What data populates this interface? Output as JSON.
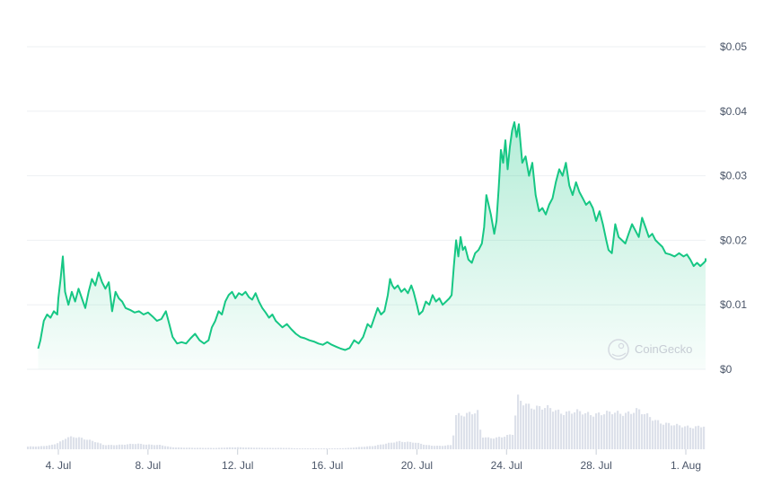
{
  "chart_data": {
    "type": "area",
    "title": "",
    "xlabel": "",
    "ylabel": "",
    "y_tick_labels": [
      "$0",
      "$0.01",
      "$0.02",
      "$0.03",
      "$0.04",
      "$0.05"
    ],
    "y_tick_values": [
      0,
      0.01,
      0.02,
      0.03,
      0.04,
      0.05
    ],
    "ylim": [
      0,
      0.05
    ],
    "x_tick_labels": [
      "4. Jul",
      "8. Jul",
      "12. Jul",
      "16. Jul",
      "20. Jul",
      "24. Jul",
      "28. Jul",
      "1. Aug"
    ],
    "x_tick_days": [
      4,
      8,
      12,
      16,
      20,
      24,
      28,
      32
    ],
    "xlim_days": [
      3.1,
      32.3
    ],
    "x_unit": "day of July",
    "grid": true,
    "line_color": "#16c784",
    "fill_color": "#16c784",
    "volume_color": "#dde1ea",
    "watermark": "CoinGecko",
    "series": [
      {
        "values": [
          [
            3.1,
            0.0032
          ],
          [
            3.2,
            0.0045
          ],
          [
            3.35,
            0.0075
          ],
          [
            3.5,
            0.0085
          ],
          [
            3.65,
            0.008
          ],
          [
            3.8,
            0.009
          ],
          [
            3.95,
            0.0085
          ],
          [
            4.0,
            0.011
          ],
          [
            4.1,
            0.014
          ],
          [
            4.2,
            0.0175
          ],
          [
            4.3,
            0.012
          ],
          [
            4.45,
            0.01
          ],
          [
            4.6,
            0.012
          ],
          [
            4.75,
            0.0105
          ],
          [
            4.9,
            0.0125
          ],
          [
            5.05,
            0.011
          ],
          [
            5.2,
            0.0095
          ],
          [
            5.35,
            0.012
          ],
          [
            5.5,
            0.014
          ],
          [
            5.65,
            0.013
          ],
          [
            5.8,
            0.015
          ],
          [
            5.95,
            0.0135
          ],
          [
            6.1,
            0.0125
          ],
          [
            6.25,
            0.0135
          ],
          [
            6.4,
            0.009
          ],
          [
            6.55,
            0.012
          ],
          [
            6.7,
            0.011
          ],
          [
            6.85,
            0.0105
          ],
          [
            7.0,
            0.0095
          ],
          [
            7.2,
            0.0092
          ],
          [
            7.4,
            0.0088
          ],
          [
            7.6,
            0.009
          ],
          [
            7.8,
            0.0085
          ],
          [
            8.0,
            0.0088
          ],
          [
            8.2,
            0.0082
          ],
          [
            8.4,
            0.0075
          ],
          [
            8.6,
            0.0078
          ],
          [
            8.8,
            0.009
          ],
          [
            8.95,
            0.007
          ],
          [
            9.1,
            0.005
          ],
          [
            9.3,
            0.004
          ],
          [
            9.5,
            0.0042
          ],
          [
            9.7,
            0.004
          ],
          [
            9.9,
            0.0048
          ],
          [
            10.1,
            0.0055
          ],
          [
            10.3,
            0.0045
          ],
          [
            10.5,
            0.004
          ],
          [
            10.7,
            0.0045
          ],
          [
            10.85,
            0.0065
          ],
          [
            11.0,
            0.0075
          ],
          [
            11.15,
            0.009
          ],
          [
            11.3,
            0.0085
          ],
          [
            11.45,
            0.0105
          ],
          [
            11.6,
            0.0115
          ],
          [
            11.75,
            0.012
          ],
          [
            11.9,
            0.011
          ],
          [
            12.05,
            0.0118
          ],
          [
            12.2,
            0.0115
          ],
          [
            12.35,
            0.012
          ],
          [
            12.5,
            0.0112
          ],
          [
            12.65,
            0.0108
          ],
          [
            12.8,
            0.0118
          ],
          [
            12.95,
            0.0105
          ],
          [
            13.1,
            0.0095
          ],
          [
            13.25,
            0.0088
          ],
          [
            13.4,
            0.008
          ],
          [
            13.55,
            0.0085
          ],
          [
            13.7,
            0.0075
          ],
          [
            13.85,
            0.007
          ],
          [
            14.0,
            0.0065
          ],
          [
            14.2,
            0.007
          ],
          [
            14.4,
            0.0062
          ],
          [
            14.6,
            0.0055
          ],
          [
            14.8,
            0.005
          ],
          [
            15.0,
            0.0048
          ],
          [
            15.2,
            0.0045
          ],
          [
            15.4,
            0.0043
          ],
          [
            15.6,
            0.004
          ],
          [
            15.8,
            0.0038
          ],
          [
            16.0,
            0.0042
          ],
          [
            16.2,
            0.0038
          ],
          [
            16.4,
            0.0035
          ],
          [
            16.6,
            0.0032
          ],
          [
            16.8,
            0.003
          ],
          [
            17.0,
            0.0033
          ],
          [
            17.2,
            0.0045
          ],
          [
            17.4,
            0.004
          ],
          [
            17.6,
            0.005
          ],
          [
            17.8,
            0.007
          ],
          [
            17.95,
            0.0065
          ],
          [
            18.1,
            0.008
          ],
          [
            18.25,
            0.0095
          ],
          [
            18.4,
            0.0085
          ],
          [
            18.55,
            0.009
          ],
          [
            18.7,
            0.0115
          ],
          [
            18.8,
            0.014
          ],
          [
            18.9,
            0.013
          ],
          [
            19.0,
            0.0125
          ],
          [
            19.15,
            0.013
          ],
          [
            19.3,
            0.012
          ],
          [
            19.45,
            0.0125
          ],
          [
            19.6,
            0.0118
          ],
          [
            19.75,
            0.013
          ],
          [
            19.85,
            0.012
          ],
          [
            20.0,
            0.01
          ],
          [
            20.1,
            0.0085
          ],
          [
            20.25,
            0.009
          ],
          [
            20.4,
            0.0105
          ],
          [
            20.55,
            0.01
          ],
          [
            20.7,
            0.0115
          ],
          [
            20.85,
            0.0105
          ],
          [
            21.0,
            0.011
          ],
          [
            21.15,
            0.01
          ],
          [
            21.3,
            0.0105
          ],
          [
            21.45,
            0.011
          ],
          [
            21.55,
            0.0115
          ],
          [
            21.65,
            0.016
          ],
          [
            21.75,
            0.02
          ],
          [
            21.85,
            0.0175
          ],
          [
            21.95,
            0.0205
          ],
          [
            22.05,
            0.0185
          ],
          [
            22.15,
            0.019
          ],
          [
            22.3,
            0.017
          ],
          [
            22.45,
            0.0165
          ],
          [
            22.6,
            0.018
          ],
          [
            22.75,
            0.0185
          ],
          [
            22.9,
            0.0195
          ],
          [
            23.0,
            0.022
          ],
          [
            23.1,
            0.027
          ],
          [
            23.2,
            0.0255
          ],
          [
            23.3,
            0.024
          ],
          [
            23.45,
            0.021
          ],
          [
            23.55,
            0.023
          ],
          [
            23.65,
            0.028
          ],
          [
            23.75,
            0.034
          ],
          [
            23.85,
            0.032
          ],
          [
            23.95,
            0.0355
          ],
          [
            24.05,
            0.031
          ],
          [
            24.15,
            0.0345
          ],
          [
            24.25,
            0.037
          ],
          [
            24.35,
            0.0383
          ],
          [
            24.45,
            0.036
          ],
          [
            24.55,
            0.038
          ],
          [
            24.7,
            0.032
          ],
          [
            24.85,
            0.033
          ],
          [
            25.0,
            0.03
          ],
          [
            25.15,
            0.032
          ],
          [
            25.3,
            0.027
          ],
          [
            25.45,
            0.0245
          ],
          [
            25.6,
            0.025
          ],
          [
            25.75,
            0.024
          ],
          [
            25.9,
            0.0255
          ],
          [
            26.05,
            0.0265
          ],
          [
            26.2,
            0.029
          ],
          [
            26.35,
            0.031
          ],
          [
            26.5,
            0.03
          ],
          [
            26.65,
            0.032
          ],
          [
            26.8,
            0.0285
          ],
          [
            26.95,
            0.027
          ],
          [
            27.1,
            0.029
          ],
          [
            27.25,
            0.0275
          ],
          [
            27.4,
            0.0265
          ],
          [
            27.55,
            0.0255
          ],
          [
            27.7,
            0.026
          ],
          [
            27.85,
            0.025
          ],
          [
            28.0,
            0.023
          ],
          [
            28.15,
            0.0245
          ],
          [
            28.3,
            0.0225
          ],
          [
            28.45,
            0.02
          ],
          [
            28.55,
            0.0185
          ],
          [
            28.7,
            0.018
          ],
          [
            28.85,
            0.0225
          ],
          [
            29.0,
            0.0205
          ],
          [
            29.15,
            0.02
          ],
          [
            29.3,
            0.0195
          ],
          [
            29.45,
            0.021
          ],
          [
            29.6,
            0.0225
          ],
          [
            29.75,
            0.0215
          ],
          [
            29.9,
            0.0205
          ],
          [
            30.05,
            0.0235
          ],
          [
            30.2,
            0.022
          ],
          [
            30.35,
            0.0205
          ],
          [
            30.5,
            0.021
          ],
          [
            30.65,
            0.02
          ],
          [
            30.8,
            0.0195
          ],
          [
            30.95,
            0.019
          ],
          [
            31.1,
            0.018
          ],
          [
            31.3,
            0.0178
          ],
          [
            31.5,
            0.0175
          ],
          [
            31.7,
            0.018
          ],
          [
            31.9,
            0.0175
          ],
          [
            32.05,
            0.0178
          ],
          [
            32.2,
            0.017
          ],
          [
            32.35,
            0.016
          ],
          [
            32.5,
            0.0165
          ],
          [
            32.65,
            0.016
          ],
          [
            32.8,
            0.0165
          ],
          [
            33.0,
            0.0168
          ],
          [
            33.1,
            0.0172
          ]
        ]
      }
    ],
    "volume": [
      [
        3.1,
        0.04
      ],
      [
        3.6,
        0.06
      ],
      [
        4.0,
        0.1
      ],
      [
        4.3,
        0.16
      ],
      [
        4.6,
        0.18
      ],
      [
        5.0,
        0.17
      ],
      [
        5.5,
        0.12
      ],
      [
        6.0,
        0.06
      ],
      [
        7.0,
        0.07
      ],
      [
        7.5,
        0.08
      ],
      [
        8.5,
        0.06
      ],
      [
        9.0,
        0.03
      ],
      [
        10.0,
        0.02
      ],
      [
        11.0,
        0.02
      ],
      [
        12.0,
        0.03
      ],
      [
        13.0,
        0.02
      ],
      [
        14.0,
        0.02
      ],
      [
        15.0,
        0.01
      ],
      [
        16.0,
        0.01
      ],
      [
        17.0,
        0.02
      ],
      [
        18.0,
        0.05
      ],
      [
        18.6,
        0.08
      ],
      [
        19.2,
        0.12
      ],
      [
        19.8,
        0.1
      ],
      [
        20.4,
        0.06
      ],
      [
        21.0,
        0.05
      ],
      [
        21.55,
        0.06
      ],
      [
        21.65,
        0.48
      ],
      [
        22.0,
        0.52
      ],
      [
        22.4,
        0.55
      ],
      [
        22.75,
        0.53
      ],
      [
        22.8,
        0.18
      ],
      [
        23.2,
        0.16
      ],
      [
        23.6,
        0.18
      ],
      [
        24.0,
        0.2
      ],
      [
        24.3,
        0.22
      ],
      [
        24.4,
        0.75
      ],
      [
        24.6,
        0.7
      ],
      [
        25.0,
        0.65
      ],
      [
        25.5,
        0.6
      ],
      [
        26.0,
        0.58
      ],
      [
        26.5,
        0.55
      ],
      [
        27.0,
        0.54
      ],
      [
        27.5,
        0.52
      ],
      [
        28.0,
        0.53
      ],
      [
        28.5,
        0.52
      ],
      [
        29.0,
        0.53
      ],
      [
        29.5,
        0.55
      ],
      [
        29.8,
        0.57
      ],
      [
        30.0,
        0.52
      ],
      [
        30.5,
        0.45
      ],
      [
        31.0,
        0.38
      ],
      [
        31.5,
        0.34
      ],
      [
        32.0,
        0.34
      ],
      [
        32.5,
        0.33
      ],
      [
        33.1,
        0.33
      ]
    ]
  }
}
